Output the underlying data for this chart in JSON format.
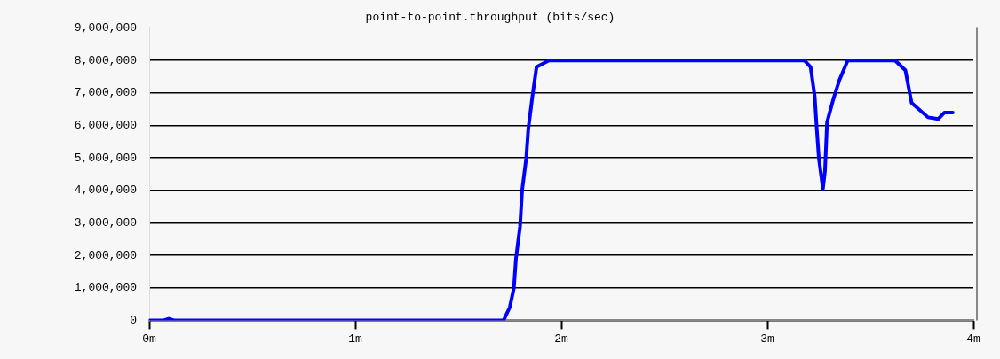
{
  "chart_data": {
    "type": "line",
    "title": "point-to-point.throughput (bits/sec)",
    "series": [
      {
        "color": "#0000ff",
        "x": [
          0,
          0.07,
          0.095,
          0.12,
          1.72,
          1.75,
          1.77,
          1.78,
          1.8,
          1.81,
          1.83,
          1.84,
          1.86,
          1.88,
          1.94,
          3.18,
          3.21,
          3.23,
          3.24,
          3.25,
          3.27,
          3.28,
          3.29,
          3.32,
          3.35,
          3.39,
          3.62,
          3.67,
          3.7,
          3.78,
          3.83,
          3.86,
          3.9
        ],
        "values": [
          0,
          0,
          50000,
          0,
          0,
          400000,
          1000000,
          1900000,
          2900000,
          4000000,
          5000000,
          5900000,
          6900000,
          7800000,
          8000000,
          8000000,
          7800000,
          6900000,
          5900000,
          5000000,
          4050000,
          4600000,
          6100000,
          6800000,
          7400000,
          8000000,
          8000000,
          7700000,
          6700000,
          6250000,
          6200000,
          6400000,
          6400000
        ]
      }
    ],
    "xlim": [
      0,
      4
    ],
    "xticks": [
      {
        "value": 0,
        "label": "0m"
      },
      {
        "value": 1,
        "label": "1m"
      },
      {
        "value": 2,
        "label": "2m"
      },
      {
        "value": 3,
        "label": "3m"
      },
      {
        "value": 4,
        "label": "4m"
      }
    ],
    "ylim": [
      0,
      9000000
    ],
    "yticks": [
      0,
      {
        "value": 1000000,
        "label": "1,000,000"
      },
      {
        "value": 2000000,
        "label": "2,000,000"
      },
      {
        "value": 3000000,
        "label": "3,000,000"
      },
      {
        "value": 4000000,
        "label": "4,000,000"
      },
      {
        "value": 5000000,
        "label": "5,000,000"
      },
      {
        "value": 6000000,
        "label": "6,000,000"
      },
      {
        "value": 7000000,
        "label": "7,000,000"
      },
      {
        "value": 8000000,
        "label": "8,000,000"
      },
      {
        "value": 9000000,
        "label": "9,000,000"
      }
    ],
    "grid": "y",
    "legend": false,
    "marker": "none",
    "line_style": "solid"
  }
}
